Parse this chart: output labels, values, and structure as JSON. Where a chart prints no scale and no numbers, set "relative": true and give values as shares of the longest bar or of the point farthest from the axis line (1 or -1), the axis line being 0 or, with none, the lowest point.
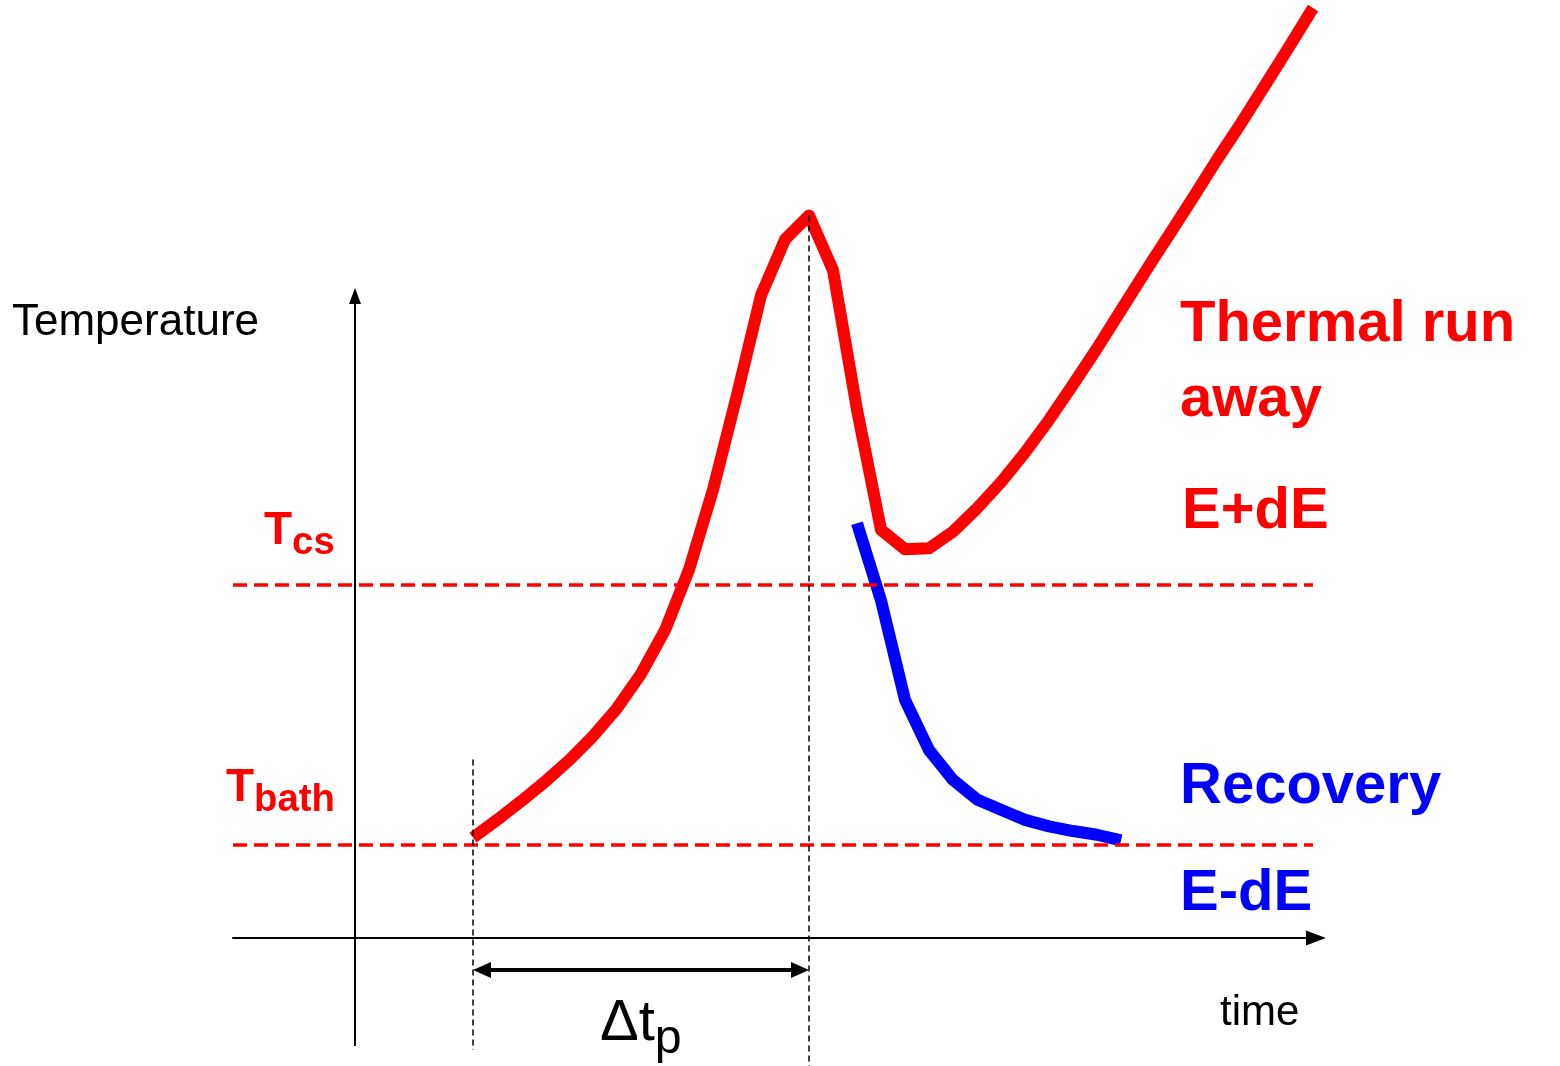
{
  "chart_data": {
    "type": "line",
    "relative": true,
    "xlabel": "time",
    "ylabel": "Temperature",
    "categories": [
      null,
      null,
      null,
      null,
      null,
      null,
      null,
      null,
      null,
      null,
      null,
      null,
      null,
      null,
      null,
      null,
      null,
      null,
      null,
      null,
      null,
      null,
      null,
      null,
      null,
      null,
      null,
      null,
      null,
      null,
      null,
      null,
      null,
      null,
      null,
      null,
      null,
      null,
      null,
      null,
      null,
      null,
      null,
      null,
      null,
      null
    ],
    "series": [
      {
        "name": "Thermal run away",
        "color": "#ff0000",
        "values": [
          null,
          null,
          null,
          null,
          null,
          null,
          null,
          null,
          null,
          null,
          0.108,
          0.127,
          0.147,
          0.168,
          0.191,
          0.217,
          0.247,
          0.284,
          0.331,
          0.396,
          0.482,
          0.584,
          0.691,
          0.751,
          0.777,
          0.718,
          0.568,
          0.439,
          0.418,
          0.419,
          0.437,
          0.462,
          0.49,
          0.522,
          0.557,
          0.595,
          0.634,
          0.675,
          0.716,
          0.756,
          0.796,
          0.837,
          0.876,
          0.917,
          0.958,
          1
        ]
      },
      {
        "name": "Recovery",
        "color": "#0000ff",
        "values": [
          null,
          null,
          null,
          null,
          null,
          null,
          null,
          null,
          null,
          null,
          null,
          null,
          null,
          null,
          null,
          null,
          null,
          null,
          null,
          null,
          null,
          null,
          null,
          null,
          null,
          null,
          0.446,
          0.363,
          0.256,
          0.202,
          0.17,
          0.149,
          0.138,
          0.127,
          0.12,
          0.115,
          0.111,
          0.105,
          null,
          null,
          null,
          null,
          null,
          null,
          null,
          null
        ]
      }
    ],
    "ref_lines": [
      {
        "axis": "y",
        "value": 0.38,
        "label": "T$_{cs}$",
        "color": "#ff0000",
        "line_style": "dashed"
      },
      {
        "axis": "y",
        "value": 0.103,
        "label": "T$_{bath}$",
        "color": "#ff0000",
        "line_style": "dashed"
      }
    ],
    "annotations": [
      "E+dE",
      "E-dE",
      "Δt$_{p}$"
    ],
    "legend": false,
    "grid": false,
    "marker": "none",
    "line_style": "solid"
  }
}
